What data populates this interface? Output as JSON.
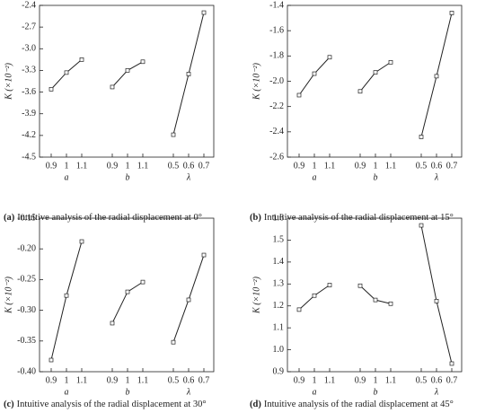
{
  "chart_data": [
    {
      "type": "line",
      "label": "(a)",
      "caption": "Intuitive analysis of the radial displacement at 0°",
      "ylabel": "K (×10⁻²)",
      "color": "#222222",
      "ylim": [
        -4.5,
        -2.4
      ],
      "yticks": [
        -4.5,
        -4.2,
        -3.9,
        -3.6,
        -3.3,
        {
          "value": -3,
          "label": "-3.0"
        },
        -2.7,
        -2.4
      ],
      "series": [
        {
          "name": "a",
          "categories": [
            "0.9",
            "1",
            "1.1"
          ],
          "values": [
            -3.56,
            -3.33,
            -3.15
          ]
        },
        {
          "name": "b",
          "categories": [
            "0.9",
            "1",
            "1.1"
          ],
          "values": [
            -3.53,
            -3.3,
            -3.18
          ]
        },
        {
          "name": "λ",
          "categories": [
            "0.5",
            "0.6",
            "0.7"
          ],
          "values": [
            -4.19,
            -3.35,
            -2.5
          ]
        }
      ]
    },
    {
      "type": "line",
      "label": "(b)",
      "caption": "Intuitive analysis of the radial displacement at  15°",
      "ylabel": "K (×10⁻²)",
      "color": "#222222",
      "ylim": [
        -2.6,
        -1.4
      ],
      "yticks": [
        -2.6,
        -2.4,
        -2.2,
        {
          "value": -2,
          "label": "-2.0"
        },
        -1.8,
        -1.6,
        -1.4
      ],
      "series": [
        {
          "name": "a",
          "categories": [
            "0.9",
            "1",
            "1.1"
          ],
          "values": [
            -2.11,
            -1.94,
            -1.81
          ]
        },
        {
          "name": "b",
          "categories": [
            "0.9",
            "1",
            "1.1"
          ],
          "values": [
            -2.08,
            -1.93,
            -1.85
          ]
        },
        {
          "name": "λ",
          "categories": [
            "0.5",
            "0.6",
            "0.7"
          ],
          "values": [
            -2.44,
            -1.96,
            -1.46
          ]
        }
      ]
    },
    {
      "type": "line",
      "label": "(c)",
      "caption": "Intuitive analysis of the radial displacement at  30°",
      "ylabel": "K (×10⁻²)",
      "color": "#222222",
      "ylim": [
        -0.4,
        -0.15
      ],
      "yticks": [
        {
          "value": -0.4,
          "label": "-0.40"
        },
        -0.35,
        {
          "value": -0.3,
          "label": "-0.30"
        },
        -0.25,
        {
          "value": -0.2,
          "label": "-0.20"
        },
        -0.15
      ],
      "series": [
        {
          "name": "a",
          "categories": [
            "0.9",
            "1",
            "1.1"
          ],
          "values": [
            -0.381,
            -0.276,
            -0.188
          ]
        },
        {
          "name": "b",
          "categories": [
            "0.9",
            "1",
            "1.1"
          ],
          "values": [
            -0.321,
            -0.27,
            -0.254
          ]
        },
        {
          "name": "λ",
          "categories": [
            "0.5",
            "0.6",
            "0.7"
          ],
          "values": [
            -0.352,
            -0.283,
            -0.21
          ]
        }
      ]
    },
    {
      "type": "line",
      "label": "(d)",
      "caption": "Intuitive analysis of the radial displacement at  45°",
      "ylabel": "K (×10⁻²)",
      "color": "#222222",
      "ylim": [
        0.9,
        1.6
      ],
      "yticks": [
        0.9,
        {
          "value": 1,
          "label": "1.0"
        },
        1.1,
        1.2,
        1.3,
        1.4,
        1.5,
        1.6
      ],
      "series": [
        {
          "name": "a",
          "categories": [
            "0.9",
            "1",
            "1.1"
          ],
          "values": [
            1.183,
            1.247,
            1.295
          ]
        },
        {
          "name": "b",
          "categories": [
            "0.9",
            "1",
            "1.1"
          ],
          "values": [
            1.292,
            1.227,
            1.21
          ]
        },
        {
          "name": "λ",
          "categories": [
            "0.5",
            "0.6",
            "0.7"
          ],
          "values": [
            1.567,
            1.222,
            0.937
          ]
        }
      ]
    }
  ]
}
